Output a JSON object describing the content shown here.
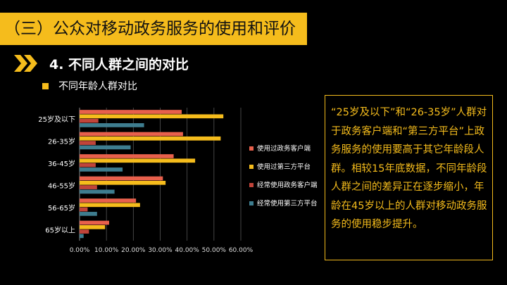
{
  "header": {
    "title": "（三）公众对移动政务服务的使用和评价"
  },
  "section": {
    "icon": "double-chevron-right-icon",
    "title": "4. 不同人群之间的对比"
  },
  "subsection": {
    "title": "不同年龄人群对比"
  },
  "note": {
    "text": "“25岁及以下”和“26-35岁”人群对于政务客户端和“第三方平台”上政务服务的使用要高于其它年龄段人群。相较15年底数据，不同年龄段人群之间的差异正在逐步缩小，年龄在45岁以上的人群对移动政务服务的使用稳步提升。"
  },
  "colors": {
    "accent": "#f5bc1c",
    "background": "#000000"
  },
  "chart_data": {
    "type": "bar",
    "orientation": "horizontal",
    "categories": [
      "25岁及以下",
      "26-35岁",
      "36-45岁",
      "46-55岁",
      "56-65岁",
      "65岁以上"
    ],
    "x_ticks": [
      "0.00%",
      "10.00%",
      "20.00%",
      "30.00%",
      "40.00%",
      "50.00%",
      "60.00%"
    ],
    "xlim": [
      0,
      60
    ],
    "grid": true,
    "legend_position": "right",
    "series": [
      {
        "name": "使用过政务客户端",
        "color": "#e8604c",
        "values": [
          38,
          38.5,
          35,
          31,
          21,
          11
        ]
      },
      {
        "name": "使用过第三方平台",
        "color": "#f5bc1c",
        "values": [
          53.5,
          52.5,
          43,
          32,
          22.5,
          9.5
        ]
      },
      {
        "name": "经常使用政务客户端",
        "color": "#c0443a",
        "values": [
          7,
          6,
          6,
          6.5,
          3,
          3.5
        ]
      },
      {
        "name": "经常使用第三方平台",
        "color": "#3e7d8f",
        "values": [
          24,
          19,
          16,
          13,
          6.5,
          1.5
        ]
      }
    ]
  }
}
